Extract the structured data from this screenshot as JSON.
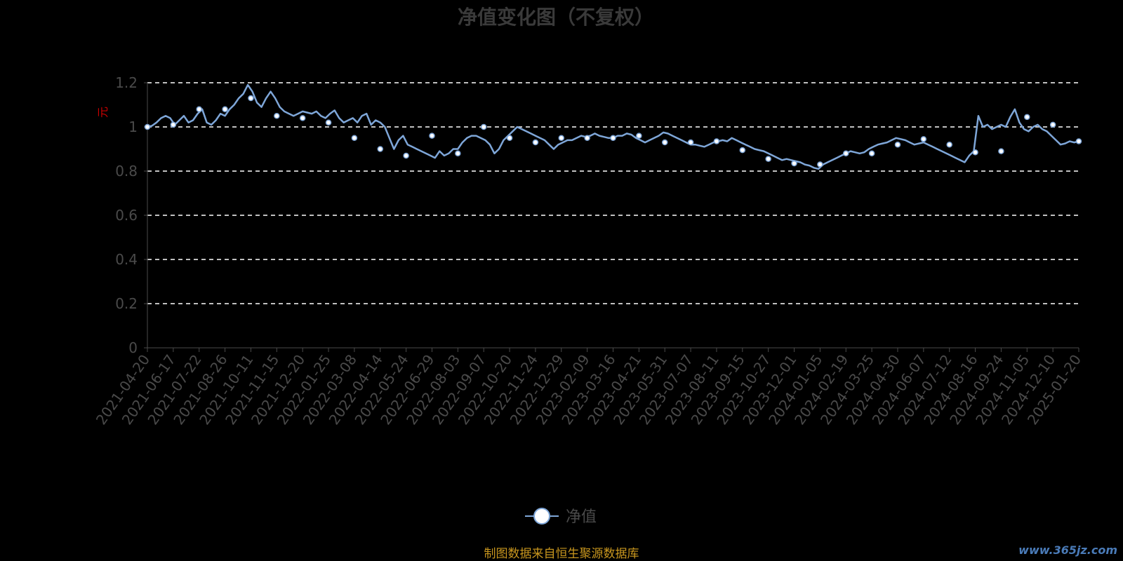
{
  "title": "净值变化图（不复权）",
  "legend_label": "净值",
  "y_unit": "元",
  "source_note": "制图数据来自恒生聚源数据库",
  "watermark": "www.365jz.com",
  "colors": {
    "background": "#000000",
    "line": "#7ea6d8",
    "marker_fill": "#ffffff",
    "grid": "#ffffff",
    "text": "#4a4a4a",
    "unit": "#cc0000",
    "source": "#c8961e"
  },
  "chart_data": {
    "type": "line",
    "title": "净值变化图（不复权）",
    "ylabel": "元",
    "ylim": [
      0,
      1.2
    ],
    "yticks": [
      "0",
      "0.2",
      "0.4",
      "0.6",
      "0.8",
      "1",
      "1.2"
    ],
    "grid": true,
    "legend_position": "bottom-center",
    "categories": [
      "2021-04-20",
      "2021-06-17",
      "2021-07-22",
      "2021-08-26",
      "2021-10-11",
      "2021-11-15",
      "2021-12-20",
      "2022-01-25",
      "2022-03-08",
      "2022-04-14",
      "2022-05-24",
      "2022-06-29",
      "2022-08-03",
      "2022-09-07",
      "2022-10-20",
      "2022-11-24",
      "2022-12-29",
      "2023-02-09",
      "2023-03-16",
      "2023-04-21",
      "2023-05-31",
      "2023-07-07",
      "2023-08-11",
      "2023-09-15",
      "2023-10-27",
      "2023-12-01",
      "2024-01-05",
      "2024-02-19",
      "2024-03-25",
      "2024-04-30",
      "2024-06-07",
      "2024-07-12",
      "2024-08-16",
      "2024-09-24",
      "2024-11-05",
      "2024-12-10",
      "2025-01-20"
    ],
    "series": [
      {
        "name": "净值",
        "values": [
          1.0,
          1.01,
          1.08,
          1.08,
          1.13,
          1.05,
          1.04,
          1.02,
          0.95,
          0.9,
          0.87,
          0.96,
          0.88,
          1.0,
          0.95,
          0.93,
          0.95,
          0.95,
          0.95,
          0.96,
          0.93,
          0.93,
          0.935,
          0.895,
          0.855,
          0.835,
          0.83,
          0.88,
          0.88,
          0.92,
          0.945,
          0.92,
          0.885,
          0.89,
          1.045,
          1.01,
          0.935
        ],
        "path": [
          1.0,
          1.005,
          1.02,
          1.04,
          1.05,
          1.04,
          1.01,
          1.03,
          1.05,
          1.02,
          1.03,
          1.06,
          1.08,
          1.02,
          1.01,
          1.03,
          1.06,
          1.05,
          1.08,
          1.1,
          1.13,
          1.15,
          1.19,
          1.16,
          1.11,
          1.09,
          1.13,
          1.16,
          1.13,
          1.09,
          1.07,
          1.06,
          1.05,
          1.06,
          1.07,
          1.065,
          1.06,
          1.07,
          1.05,
          1.04,
          1.06,
          1.075,
          1.04,
          1.02,
          1.03,
          1.04,
          1.02,
          1.05,
          1.06,
          1.01,
          1.03,
          1.02,
          1.0,
          0.95,
          0.9,
          0.94,
          0.96,
          0.92,
          0.91,
          0.9,
          0.89,
          0.88,
          0.87,
          0.86,
          0.89,
          0.87,
          0.88,
          0.9,
          0.9,
          0.93,
          0.95,
          0.96,
          0.96,
          0.95,
          0.94,
          0.92,
          0.88,
          0.9,
          0.94,
          0.96,
          0.98,
          1.0,
          0.99,
          0.98,
          0.97,
          0.96,
          0.95,
          0.94,
          0.92,
          0.9,
          0.92,
          0.93,
          0.94,
          0.94,
          0.95,
          0.96,
          0.955,
          0.96,
          0.97,
          0.96,
          0.955,
          0.95,
          0.95,
          0.96,
          0.96,
          0.97,
          0.965,
          0.95,
          0.94,
          0.93,
          0.94,
          0.95,
          0.96,
          0.975,
          0.97,
          0.96,
          0.95,
          0.94,
          0.93,
          0.92,
          0.92,
          0.915,
          0.91,
          0.92,
          0.93,
          0.935,
          0.94,
          0.935,
          0.95,
          0.94,
          0.93,
          0.92,
          0.91,
          0.9,
          0.895,
          0.89,
          0.88,
          0.87,
          0.86,
          0.85,
          0.855,
          0.85,
          0.845,
          0.84,
          0.83,
          0.825,
          0.815,
          0.81,
          0.83,
          0.84,
          0.85,
          0.86,
          0.87,
          0.88,
          0.89,
          0.885,
          0.88,
          0.885,
          0.9,
          0.91,
          0.92,
          0.925,
          0.93,
          0.94,
          0.95,
          0.945,
          0.94,
          0.93,
          0.92,
          0.925,
          0.93,
          0.92,
          0.91,
          0.9,
          0.89,
          0.88,
          0.87,
          0.86,
          0.85,
          0.84,
          0.87,
          0.89,
          1.05,
          1.0,
          1.01,
          0.99,
          1.0,
          1.01,
          1.0,
          1.045,
          1.08,
          1.02,
          0.99,
          0.98,
          1.0,
          1.01,
          0.99,
          0.98,
          0.96,
          0.94,
          0.92,
          0.925,
          0.935,
          0.93,
          0.935
        ]
      }
    ]
  }
}
